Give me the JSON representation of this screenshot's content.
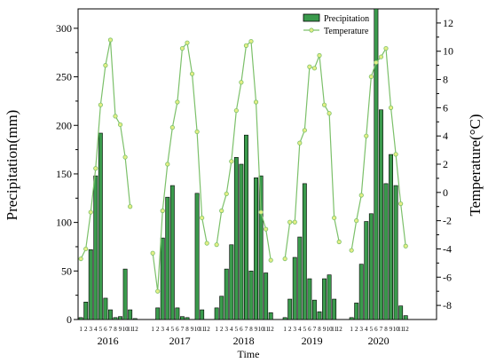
{
  "chart_data": {
    "type": "bar+line",
    "xlabel": "Time",
    "ylabel_left": "Precipitation(mm)",
    "ylabel_right": "Temperature(°C)",
    "ylim_left": [
      0,
      320
    ],
    "ylim_right": [
      -9,
      13
    ],
    "yticks_left": [
      0,
      50,
      100,
      150,
      200,
      250,
      300
    ],
    "yticks_right": [
      -8,
      -6,
      -4,
      -2,
      0,
      2,
      4,
      6,
      8,
      10,
      12
    ],
    "legend_position": "top-right",
    "month_labels": [
      "1",
      "2",
      "3",
      "4",
      "5",
      "6",
      "7",
      "8",
      "9",
      "10",
      "11",
      "12"
    ],
    "years": [
      {
        "year": "2016",
        "precipitation": [
          2,
          18,
          72,
          148,
          192,
          22,
          10,
          2,
          3,
          52,
          10,
          1
        ],
        "temperature": [
          -4.7,
          -4.0,
          -1.4,
          1.7,
          6.2,
          9.0,
          10.8,
          5.4,
          4.8,
          2.5,
          -1.0,
          null
        ]
      },
      {
        "year": "2017",
        "precipitation": [
          0,
          12,
          84,
          126,
          138,
          12,
          3,
          2,
          0,
          130,
          10,
          0
        ],
        "temperature": [
          -4.3,
          -7.0,
          -1.3,
          2.0,
          4.6,
          6.4,
          10.2,
          10.6,
          8.4,
          4.3,
          -1.8,
          -3.6
        ]
      },
      {
        "year": "2018",
        "precipitation": [
          12,
          24,
          52,
          77,
          167,
          160,
          190,
          50,
          146,
          148,
          48,
          7
        ],
        "temperature": [
          -3.7,
          -1.3,
          -0.1,
          2.2,
          5.8,
          7.8,
          10.4,
          10.7,
          6.4,
          -1.4,
          -2.6,
          -4.8
        ]
      },
      {
        "year": "2019",
        "precipitation": [
          2,
          21,
          64,
          85,
          140,
          42,
          20,
          8,
          42,
          46,
          21,
          0
        ],
        "temperature": [
          -4.7,
          -2.1,
          -2.1,
          3.5,
          4.4,
          8.9,
          8.8,
          9.7,
          6.2,
          5.6,
          -1.8,
          -3.5
        ]
      },
      {
        "year": "2020",
        "precipitation": [
          2,
          17,
          57,
          101,
          109,
          320,
          216,
          140,
          170,
          138,
          14,
          4
        ],
        "temperature": [
          -4.1,
          -2.0,
          -0.2,
          4.0,
          8.2,
          9.2,
          9.6,
          10.2,
          6.0,
          2.7,
          -0.8,
          -3.8
        ]
      }
    ],
    "series": [
      {
        "name": "Precipitation",
        "kind": "bar",
        "color": "#3a9a4c",
        "edge": "#000000"
      },
      {
        "name": "Temperature",
        "kind": "line",
        "color": "#7cc06a",
        "marker_fill": "#e4ef86"
      }
    ]
  }
}
